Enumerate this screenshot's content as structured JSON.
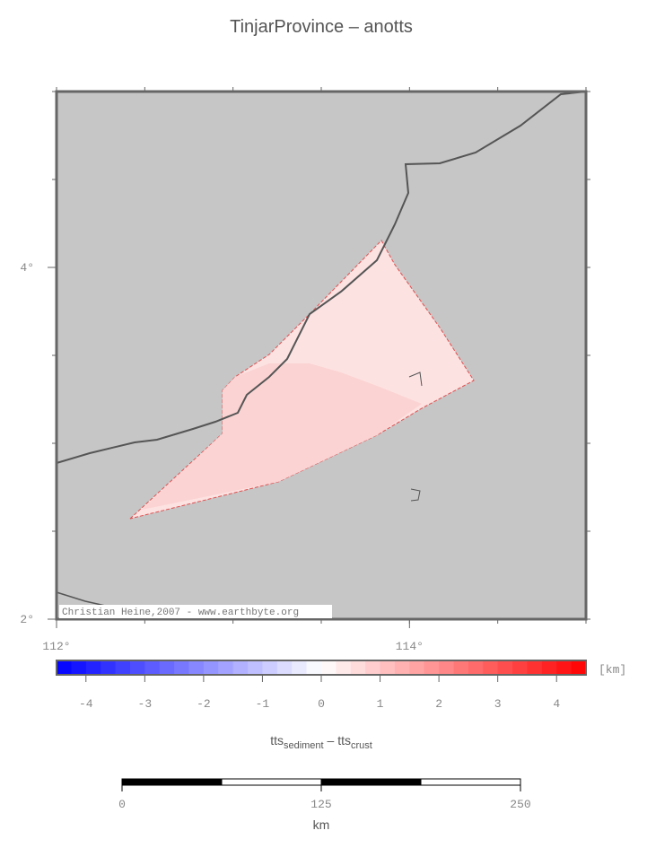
{
  "title": "TinjarProvince – anotts",
  "map": {
    "xlim": [
      112,
      115
    ],
    "ylim": [
      2,
      5
    ],
    "lat_ticks": [
      {
        "value": 2,
        "label": "2°"
      },
      {
        "value": 4,
        "label": "4°"
      }
    ],
    "lon_ticks": [
      {
        "value": 112,
        "label": "112°"
      },
      {
        "value": 114,
        "label": "114°"
      }
    ],
    "credit": "Christian Heine,2007 - www.earthbyte.org"
  },
  "colorbar": {
    "lim": [
      -4.5,
      4.5
    ],
    "ticks": [
      -4,
      -3,
      -2,
      -1,
      0,
      1,
      2,
      3,
      4
    ],
    "unit": "[km]",
    "label": [
      "tts",
      "sediment",
      " – ",
      "tts",
      "crust"
    ]
  },
  "scalebar": {
    "lim": [
      0,
      250
    ],
    "ticks": [
      0,
      125,
      250
    ],
    "unit": "km"
  }
}
